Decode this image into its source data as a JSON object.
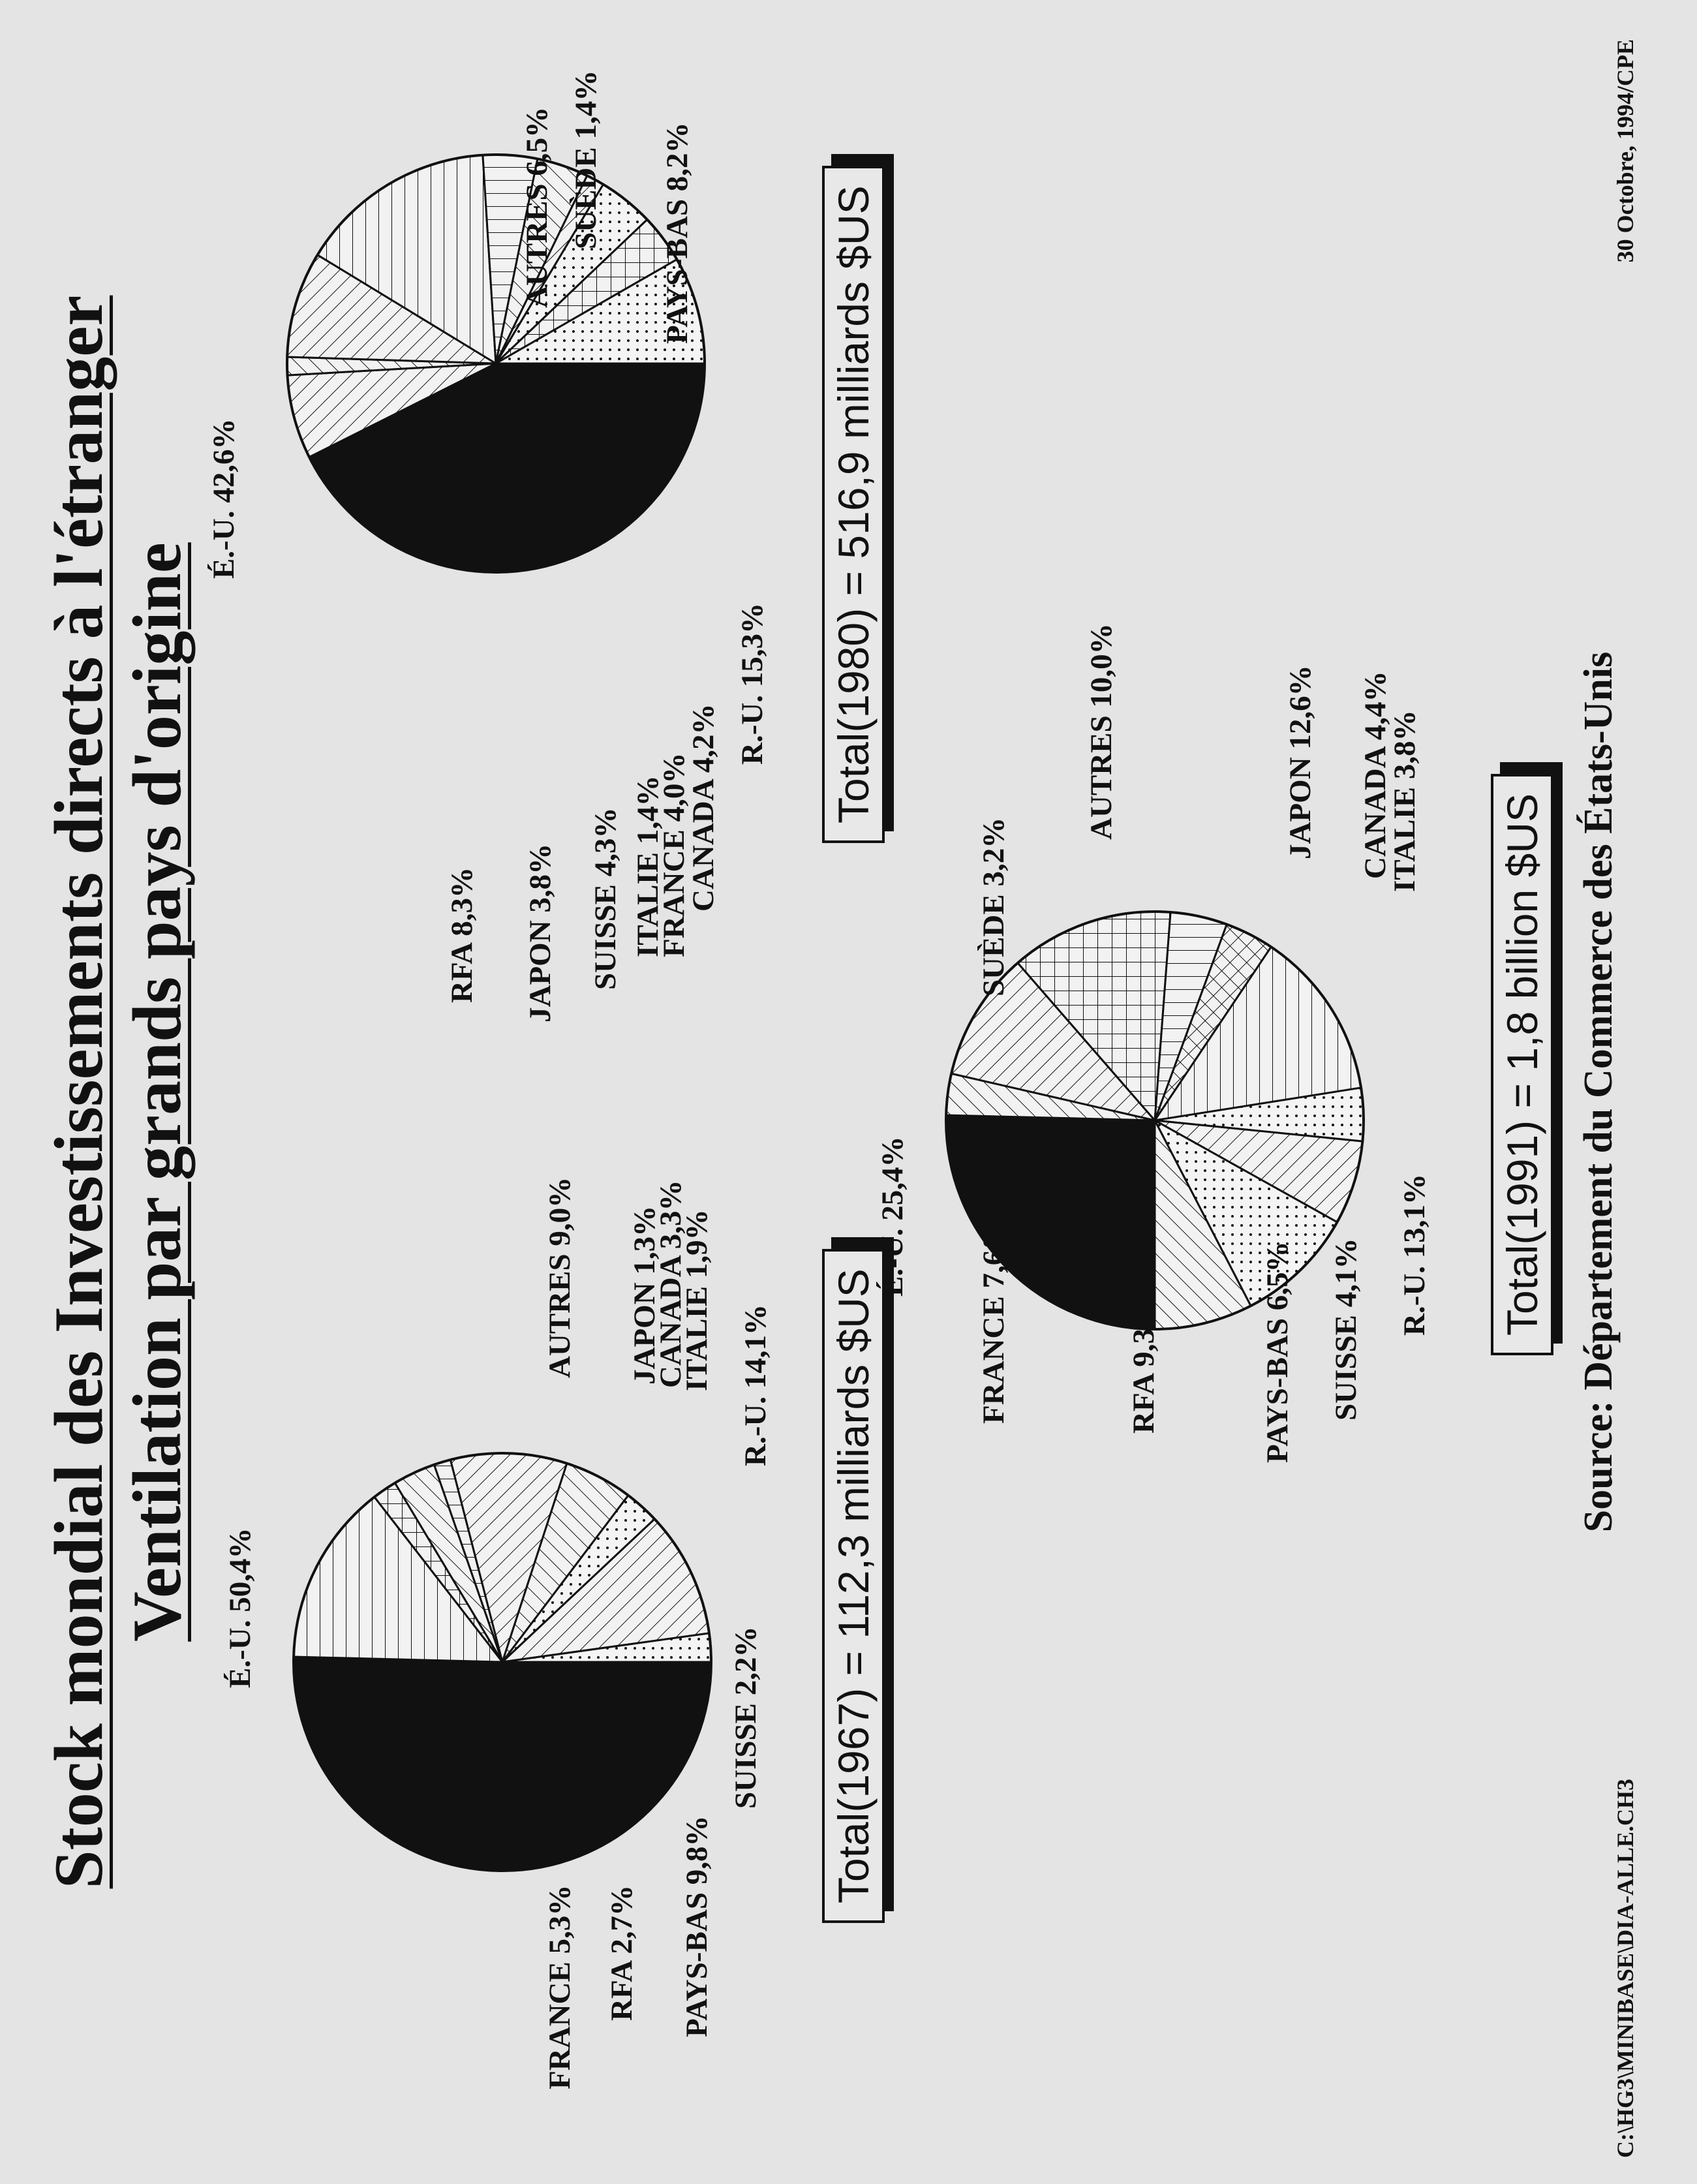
{
  "title": "Stock mondial des Investissements directs à l'étranger",
  "subtitle": "Ventilation par grands pays d'origine",
  "source": "Source:  Département du Commerce des États-Unis",
  "file_path": "C:\\HG3\\MINIBASE\\DIA-ALLE.CH3",
  "date": "30 Octobre, 1994/CPE",
  "chart_data": [
    {
      "type": "pie",
      "year": "1967",
      "total": "Total(1967) = 112,3 milliards $US",
      "slices": [
        {
          "name": "É.-U.",
          "value": 50.4,
          "label": "É.-U.  50,4%",
          "pattern": "solid"
        },
        {
          "name": "R.-U.",
          "value": 14.1,
          "label": "R.-U.  14,1%",
          "pattern": "horiz"
        },
        {
          "name": "ITALIE",
          "value": 1.9,
          "label": "ITALIE  1,9%",
          "pattern": "cross"
        },
        {
          "name": "CANADA",
          "value": 3.3,
          "label": "CANADA  3,3%",
          "pattern": "diag"
        },
        {
          "name": "JAPON",
          "value": 1.3,
          "label": "JAPON  1,3%",
          "pattern": "vert"
        },
        {
          "name": "AUTRES",
          "value": 9.0,
          "label": "AUTRES  9,0%",
          "pattern": "diag2"
        },
        {
          "name": "FRANCE",
          "value": 5.3,
          "label": "FRANCE  5,3%",
          "pattern": "diag"
        },
        {
          "name": "RFA",
          "value": 2.7,
          "label": "RFA  2,7%",
          "pattern": "dots"
        },
        {
          "name": "PAYS-BAS",
          "value": 9.8,
          "label": "PAYS-BAS  9,8%",
          "pattern": "diag2"
        },
        {
          "name": "SUISSE",
          "value": 2.2,
          "label": "SUISSE  2,2%",
          "pattern": "dots"
        }
      ]
    },
    {
      "type": "pie",
      "year": "1980",
      "total": "Total(1980) = 516,9 milliards $US",
      "slices": [
        {
          "name": "É.-U.",
          "value": 42.6,
          "label": "É.-U.  42,6%",
          "pattern": "solid"
        },
        {
          "name": "AUTRES",
          "value": 6.5,
          "label": "AUTRES  6,5%",
          "pattern": "diag2"
        },
        {
          "name": "SUÈDE",
          "value": 1.4,
          "label": "SUÈDE  1,4%",
          "pattern": "diag"
        },
        {
          "name": "PAYS-BAS",
          "value": 8.2,
          "label": "PAYS-BAS  8,2%",
          "pattern": "diag2"
        },
        {
          "name": "R.-U.",
          "value": 15.3,
          "label": "R.-U.  15,3%",
          "pattern": "horiz"
        },
        {
          "name": "CANADA",
          "value": 4.2,
          "label": "CANADA  4,2%",
          "pattern": "vert"
        },
        {
          "name": "FRANCE",
          "value": 4.0,
          "label": "FRANCE  4,0%",
          "pattern": "diag"
        },
        {
          "name": "ITALIE",
          "value": 1.4,
          "label": "ITALIE  1,4%",
          "pattern": "diag2"
        },
        {
          "name": "SUISSE",
          "value": 4.3,
          "label": "SUISSE  4,3%",
          "pattern": "dots"
        },
        {
          "name": "JAPON",
          "value": 3.8,
          "label": "JAPON  3,8%",
          "pattern": "cross"
        },
        {
          "name": "RFA",
          "value": 8.3,
          "label": "RFA  8,3%",
          "pattern": "dots"
        }
      ]
    },
    {
      "type": "pie",
      "year": "1991",
      "total": "Total(1991) = 1,8 billion $US",
      "slices": [
        {
          "name": "É.-U.",
          "value": 25.4,
          "label": "É.-U.  25,4%",
          "pattern": "solid"
        },
        {
          "name": "SUÈDE",
          "value": 3.2,
          "label": "SUÈDE  3,2%",
          "pattern": "diag"
        },
        {
          "name": "AUTRES",
          "value": 10.0,
          "label": "AUTRES  10,0%",
          "pattern": "diag2"
        },
        {
          "name": "JAPON",
          "value": 12.6,
          "label": "JAPON  12,6%",
          "pattern": "cross"
        },
        {
          "name": "CANADA",
          "value": 4.4,
          "label": "CANADA  4,4%",
          "pattern": "vert"
        },
        {
          "name": "ITALIE",
          "value": 3.8,
          "label": "ITALIE  3,8%",
          "pattern": "xcross"
        },
        {
          "name": "R.-U.",
          "value": 13.1,
          "label": "R.-U.  13,1%",
          "pattern": "horiz"
        },
        {
          "name": "SUISSE",
          "value": 4.1,
          "label": "SUISSE  4,1%",
          "pattern": "dots"
        },
        {
          "name": "PAYS-BAS",
          "value": 6.5,
          "label": "PAYS-BAS  6,5%",
          "pattern": "diag2"
        },
        {
          "name": "RFA",
          "value": 9.3,
          "label": "RFA  9,3%",
          "pattern": "dots"
        },
        {
          "name": "FRANCE",
          "value": 7.6,
          "label": "FRANCE  7,6%",
          "pattern": "diag"
        }
      ]
    }
  ]
}
